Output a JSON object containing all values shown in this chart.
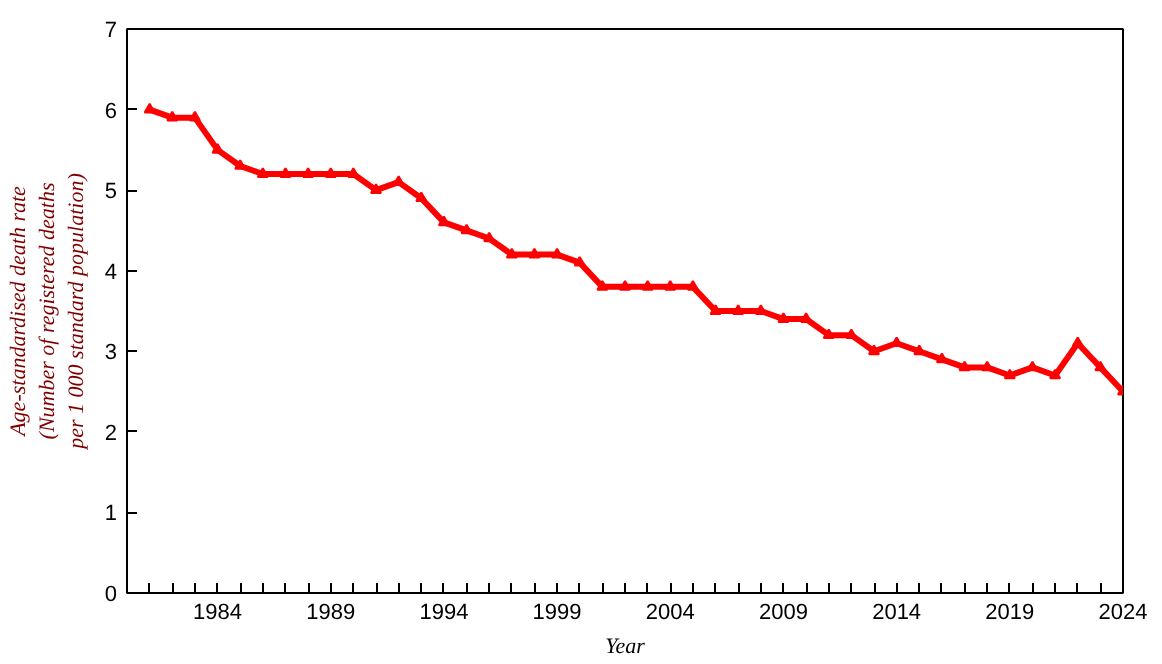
{
  "chart_data": {
    "type": "line",
    "xlabel": "Year",
    "ylabel": "Age-standardised death rate\n(Number of registered deaths\nper 1 000 standard population)",
    "x": [
      1981,
      1982,
      1983,
      1984,
      1985,
      1986,
      1987,
      1988,
      1989,
      1990,
      1991,
      1992,
      1993,
      1994,
      1995,
      1996,
      1997,
      1998,
      1999,
      2000,
      2001,
      2002,
      2003,
      2004,
      2005,
      2006,
      2007,
      2008,
      2009,
      2010,
      2011,
      2012,
      2013,
      2014,
      2015,
      2016,
      2017,
      2018,
      2019,
      2020,
      2021,
      2022,
      2023,
      2024
    ],
    "series": [
      {
        "color": "#ff0000",
        "values": [
          6.0,
          5.9,
          5.9,
          5.5,
          5.3,
          5.2,
          5.2,
          5.2,
          5.2,
          5.2,
          5.0,
          5.1,
          4.9,
          4.6,
          4.5,
          4.4,
          4.2,
          4.2,
          4.2,
          4.1,
          3.8,
          3.8,
          3.8,
          3.8,
          3.8,
          3.5,
          3.5,
          3.5,
          3.4,
          3.4,
          3.2,
          3.2,
          3.0,
          3.1,
          3.0,
          2.9,
          2.8,
          2.8,
          2.7,
          2.8,
          2.7,
          3.1,
          2.8,
          2.5
        ]
      }
    ],
    "xlim": [
      1980,
      2024
    ],
    "xticks": [
      {
        "value": 1981,
        "label": null
      },
      {
        "value": 1982,
        "label": null
      },
      {
        "value": 1983,
        "label": null
      },
      1984,
      {
        "value": 1985,
        "label": null
      },
      {
        "value": 1986,
        "label": null
      },
      {
        "value": 1987,
        "label": null
      },
      {
        "value": 1988,
        "label": null
      },
      1989,
      {
        "value": 1990,
        "label": null
      },
      {
        "value": 1991,
        "label": null
      },
      {
        "value": 1992,
        "label": null
      },
      {
        "value": 1993,
        "label": null
      },
      1994,
      {
        "value": 1995,
        "label": null
      },
      {
        "value": 1996,
        "label": null
      },
      {
        "value": 1997,
        "label": null
      },
      {
        "value": 1998,
        "label": null
      },
      1999,
      {
        "value": 2000,
        "label": null
      },
      {
        "value": 2001,
        "label": null
      },
      {
        "value": 2002,
        "label": null
      },
      {
        "value": 2003,
        "label": null
      },
      2004,
      {
        "value": 2005,
        "label": null
      },
      {
        "value": 2006,
        "label": null
      },
      {
        "value": 2007,
        "label": null
      },
      {
        "value": 2008,
        "label": null
      },
      2009,
      {
        "value": 2010,
        "label": null
      },
      {
        "value": 2011,
        "label": null
      },
      {
        "value": 2012,
        "label": null
      },
      {
        "value": 2013,
        "label": null
      },
      2014,
      {
        "value": 2015,
        "label": null
      },
      {
        "value": 2016,
        "label": null
      },
      {
        "value": 2017,
        "label": null
      },
      {
        "value": 2018,
        "label": null
      },
      2019,
      {
        "value": 2020,
        "label": null
      },
      {
        "value": 2021,
        "label": null
      },
      {
        "value": 2022,
        "label": null
      },
      {
        "value": 2023,
        "label": null
      },
      2024
    ],
    "ylim": [
      0,
      7
    ],
    "yticks": [
      0,
      1,
      2,
      3,
      4,
      5,
      6,
      7
    ],
    "grid": false,
    "marker": "triangle",
    "line_style": "solid"
  }
}
